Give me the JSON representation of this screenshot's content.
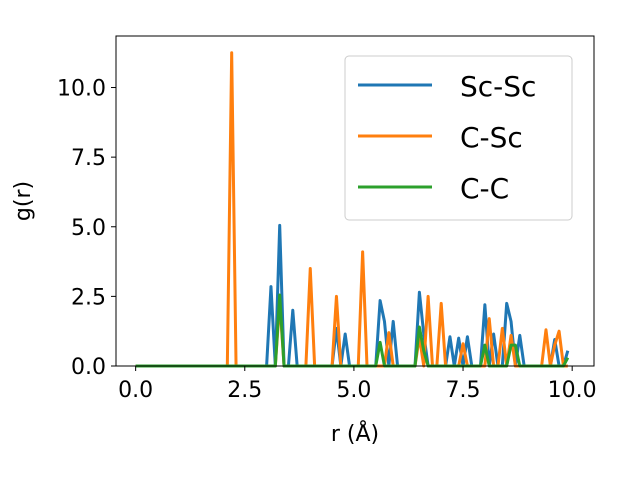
{
  "chart_data": {
    "type": "line",
    "xlabel": "r (Å)",
    "ylabel": "g(r)",
    "xlim": [
      -0.45,
      10.5
    ],
    "ylim": [
      0,
      11.85
    ],
    "xticks": [
      0.0,
      2.5,
      5.0,
      7.5,
      10.0
    ],
    "xtick_labels": [
      "0.0",
      "2.5",
      "5.0",
      "7.5",
      "10.0"
    ],
    "yticks": [
      0.0,
      2.5,
      5.0,
      7.5,
      10.0
    ],
    "ytick_labels": [
      "0.0",
      "2.5",
      "5.0",
      "7.5",
      "10.0"
    ],
    "grid": false,
    "legend_position": "top-right",
    "series": [
      {
        "name": "Sc-Sc",
        "color": "#1f77b4",
        "x": [
          0.0,
          3.0,
          3.1,
          3.2,
          3.3,
          3.4,
          3.5,
          3.6,
          3.7,
          3.8,
          4.5,
          4.6,
          4.7,
          4.8,
          4.9,
          5.0,
          5.5,
          5.6,
          5.7,
          5.8,
          5.9,
          6.0,
          6.4,
          6.5,
          6.6,
          6.7,
          6.8,
          6.9,
          7.0,
          7.1,
          7.2,
          7.3,
          7.4,
          7.5,
          7.6,
          7.7,
          7.8,
          7.9,
          8.0,
          8.1,
          8.2,
          8.3,
          8.4,
          8.5,
          8.6,
          8.7,
          8.8,
          8.9,
          9.0,
          9.5,
          9.6,
          9.7,
          9.8,
          9.9
        ],
        "y": [
          0.0,
          0.0,
          2.85,
          0.0,
          5.05,
          0.0,
          0.0,
          2.0,
          0.0,
          0.0,
          0.0,
          1.35,
          0.0,
          1.15,
          0.0,
          0.0,
          0.0,
          2.35,
          1.6,
          0.0,
          1.6,
          0.0,
          0.0,
          2.65,
          1.15,
          0.0,
          0.0,
          0.0,
          0.0,
          0.0,
          1.05,
          0.0,
          1.0,
          0.0,
          1.05,
          0.0,
          0.0,
          0.0,
          2.2,
          0.0,
          1.15,
          0.0,
          0.0,
          2.25,
          1.6,
          0.0,
          1.1,
          0.0,
          0.0,
          0.0,
          0.95,
          0.0,
          0.0,
          0.55
        ]
      },
      {
        "name": "C-Sc",
        "color": "#ff7f0e",
        "x": [
          0.0,
          2.1,
          2.2,
          2.3,
          3.2,
          3.3,
          3.4,
          3.9,
          4.0,
          4.1,
          4.5,
          4.6,
          4.7,
          5.1,
          5.2,
          5.3,
          5.7,
          5.8,
          5.9,
          6.4,
          6.5,
          6.6,
          6.7,
          6.8,
          6.9,
          7.0,
          7.1,
          7.4,
          7.5,
          7.6,
          7.7,
          8.0,
          8.1,
          8.2,
          8.3,
          8.4,
          8.5,
          8.6,
          8.7,
          9.3,
          9.4,
          9.5,
          9.6,
          9.7,
          9.8,
          9.9
        ],
        "y": [
          0.0,
          0.0,
          11.25,
          0.0,
          0.0,
          2.3,
          0.0,
          0.0,
          3.5,
          0.0,
          0.0,
          2.5,
          0.0,
          0.0,
          4.1,
          0.0,
          0.0,
          1.2,
          0.0,
          0.0,
          1.05,
          0.0,
          2.5,
          0.0,
          0.0,
          2.25,
          0.0,
          0.0,
          0.8,
          0.0,
          0.0,
          0.0,
          1.7,
          0.0,
          0.0,
          1.35,
          0.0,
          1.1,
          0.0,
          0.0,
          1.3,
          0.0,
          0.75,
          1.25,
          0.0,
          0.0
        ]
      },
      {
        "name": "C-C",
        "color": "#2ca02c",
        "x": [
          0.0,
          3.2,
          3.3,
          3.4,
          5.5,
          5.6,
          5.7,
          6.4,
          6.5,
          6.6,
          6.7,
          7.9,
          8.0,
          8.1,
          8.5,
          8.6,
          8.7,
          8.8,
          9.8,
          9.9
        ],
        "y": [
          0.0,
          0.0,
          2.55,
          0.0,
          0.0,
          0.85,
          0.0,
          0.0,
          1.4,
          0.55,
          0.0,
          0.0,
          0.75,
          0.0,
          0.0,
          0.75,
          0.75,
          0.0,
          0.0,
          0.3
        ]
      }
    ]
  }
}
